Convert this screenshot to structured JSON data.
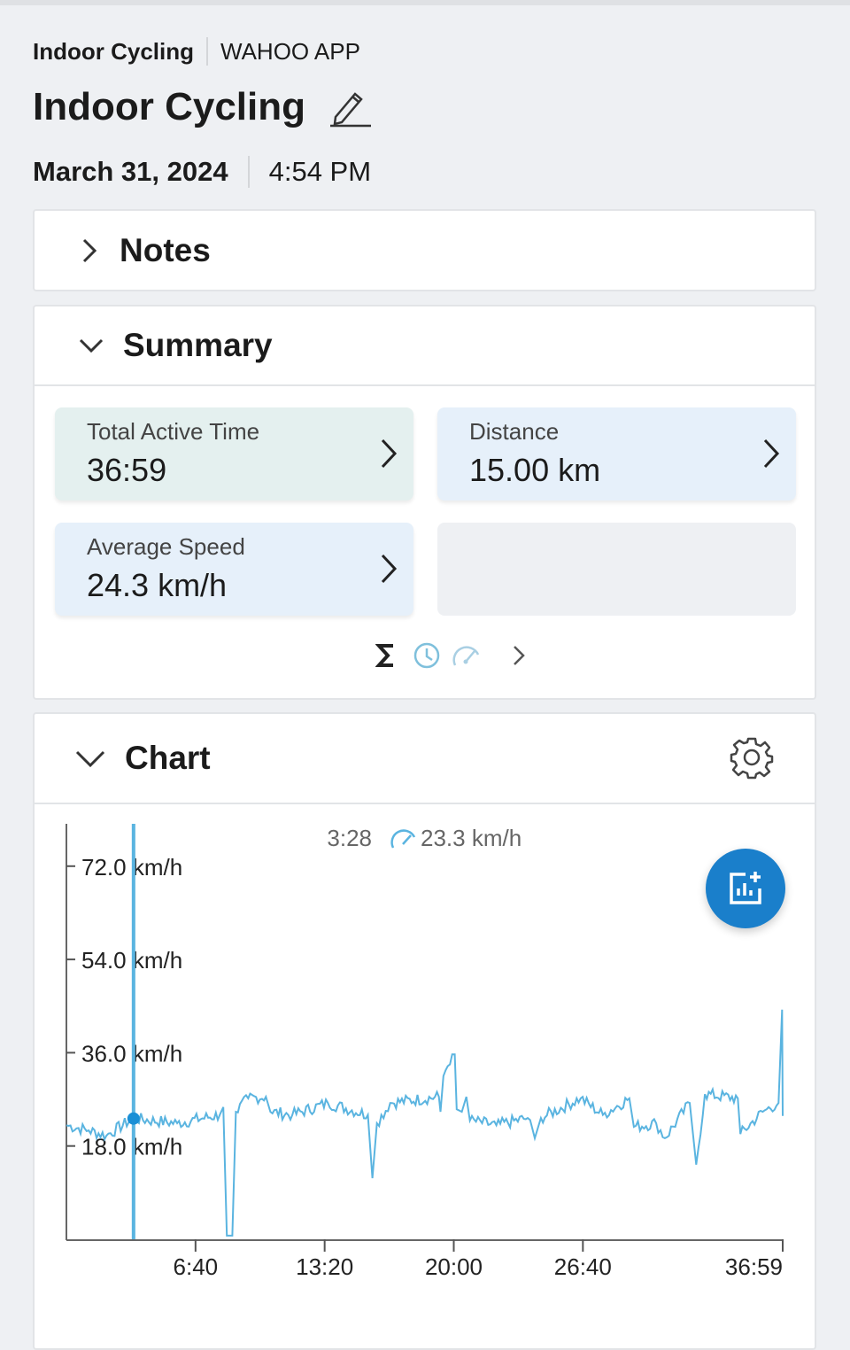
{
  "breadcrumb": {
    "activity": "Indoor Cycling",
    "source": "WAHOO APP"
  },
  "header": {
    "title": "Indoor Cycling",
    "date": "March 31, 2024",
    "time": "4:54 PM"
  },
  "notes": {
    "label": "Notes",
    "expanded": false
  },
  "summary": {
    "label": "Summary",
    "expanded": true,
    "tiles": [
      {
        "label": "Total Active Time",
        "value": "36:59"
      },
      {
        "label": "Distance",
        "value": "15.00 km"
      },
      {
        "label": "Average Speed",
        "value": "24.3 km/h"
      }
    ],
    "icons": [
      "sigma-icon",
      "clock-icon",
      "speedometer-icon",
      "chevron-right-icon"
    ]
  },
  "chart": {
    "label": "Chart",
    "expanded": true,
    "accent": "#5ab4e0",
    "fab_color": "#1a7fcb"
  },
  "chart_data": {
    "type": "line",
    "cursor": {
      "time": "3:28",
      "value": "23.3 km/h",
      "t": 208,
      "v": 23.3
    },
    "y_ticks": [
      {
        "v": 72,
        "label": "72.0 km/h"
      },
      {
        "v": 54,
        "label": "54.0 km/h"
      },
      {
        "v": 36,
        "label": "36.0 km/h"
      },
      {
        "v": 18,
        "label": "18.0 km/h"
      }
    ],
    "x_ticks": [
      {
        "t": 400,
        "label": "6:40"
      },
      {
        "t": 800,
        "label": "13:20"
      },
      {
        "t": 1200,
        "label": "20:00"
      },
      {
        "t": 1600,
        "label": "26:40"
      },
      {
        "t": 2219,
        "label": "36:59"
      }
    ],
    "ylim": [
      0,
      80
    ],
    "xlim": [
      0,
      2219
    ],
    "series": [
      {
        "t": [
          0,
          69,
          124,
          206,
          343,
          475,
          486,
          497,
          514,
          525,
          563,
          618,
          632,
          700,
          810,
          934,
          948,
          962,
          1003,
          1154,
          1159,
          1168,
          1195,
          1203,
          1209,
          1225,
          1239,
          1250,
          1332,
          1429,
          1451,
          1470,
          1593,
          1662,
          1744,
          1758,
          1827,
          1854,
          1931,
          1951,
          1978,
          2080,
          2088,
          2157,
          2206,
          2217,
          2219
        ],
        "v": [
          22,
          21,
          20,
          23.3,
          22.4,
          24,
          25.5,
          0.7,
          0.7,
          24.6,
          27.2,
          27.5,
          24.6,
          24,
          26.3,
          24,
          11.8,
          22.4,
          26.3,
          27.5,
          24.6,
          31.5,
          35.7,
          35.7,
          25.1,
          24.6,
          27.5,
          22.9,
          22,
          23.4,
          19.5,
          23.4,
          27.2,
          24,
          27.2,
          21.7,
          22.4,
          19.5,
          26.3,
          14.4,
          28,
          27.2,
          20.3,
          24.6,
          26.3,
          44.3,
          23.8
        ]
      }
    ]
  }
}
